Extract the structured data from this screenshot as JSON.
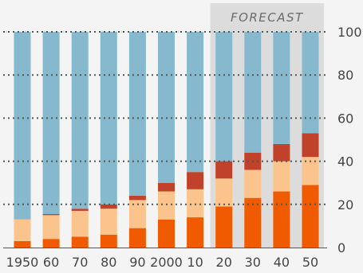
{
  "chart_data": {
    "type": "bar",
    "stacked": true,
    "annotation": "FORECAST",
    "forecast_from": "20",
    "categories": [
      "1950",
      "60",
      "70",
      "80",
      "90",
      "2000",
      "10",
      "20",
      "30",
      "40",
      "50"
    ],
    "ylim": [
      0,
      100
    ],
    "yticks": [
      0,
      20,
      40,
      60,
      80,
      100
    ],
    "grid": true,
    "series": [
      {
        "color": "#f05a00",
        "values": [
          3,
          4,
          5,
          6,
          9,
          13,
          14,
          19,
          23,
          26,
          29
        ]
      },
      {
        "color": "#fbc48c",
        "values": [
          10,
          11,
          12,
          12,
          13,
          13,
          13,
          13,
          13,
          14,
          13
        ]
      },
      {
        "color": "#c1422a",
        "values": [
          0,
          0.5,
          1,
          2,
          2,
          4,
          8,
          8,
          8,
          8,
          11
        ]
      },
      {
        "color": "#86b9cd",
        "values": [
          87,
          84.5,
          82,
          80,
          76,
          70,
          65,
          60,
          56,
          52,
          47
        ]
      }
    ]
  }
}
